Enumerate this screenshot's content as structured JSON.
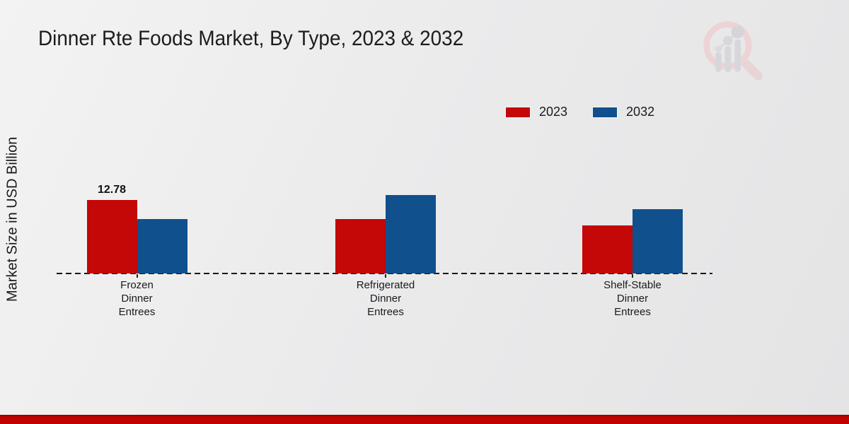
{
  "header": {
    "title": "Dinner Rte Foods Market, By Type, 2023 & 2032"
  },
  "chart_data": {
    "type": "bar",
    "title": "Dinner Rte Foods Market, By Type, 2023 & 2032",
    "xlabel": "",
    "ylabel": "Market Size in USD Billion",
    "categories": [
      "Frozen\nDinner\nEntrees",
      "Refrigerated\nDinner\nEntrees",
      "Shelf-Stable\nDinner\nEntrees"
    ],
    "series": [
      {
        "name": "2023",
        "color": "#c40707",
        "values": [
          12.78,
          9.5,
          8.4
        ],
        "value_labels": [
          "12.78",
          "",
          ""
        ]
      },
      {
        "name": "2032",
        "color": "#10508d",
        "values": [
          9.5,
          13.6,
          11.2
        ],
        "value_labels": [
          "",
          "",
          ""
        ]
      }
    ],
    "ylim": [
      0,
      18
    ],
    "grid": false,
    "legend_position": "top-right",
    "baseline_style": "dashed",
    "axis_ticks_visible": true
  },
  "branding": {
    "logo_icon": "magnifier-growth-bars-logo"
  },
  "footer": {
    "accent_color": "#c20101"
  }
}
